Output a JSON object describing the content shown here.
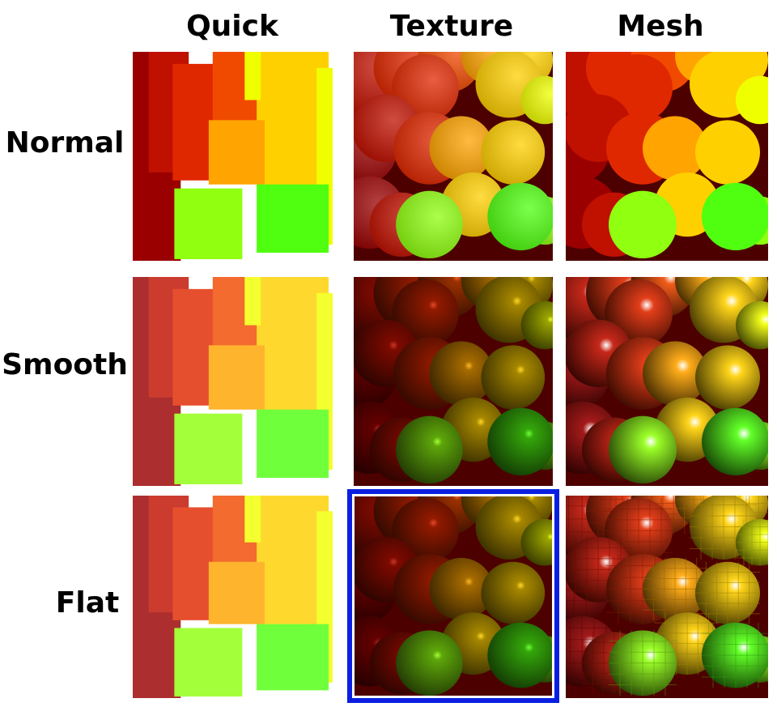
{
  "columns": [
    {
      "key": "quick",
      "label": "Quick"
    },
    {
      "key": "texture",
      "label": "Texture"
    },
    {
      "key": "mesh",
      "label": "Mesh"
    }
  ],
  "rows": [
    {
      "key": "normal",
      "label": "Normal"
    },
    {
      "key": "smooth",
      "label": "Smooth"
    },
    {
      "key": "flat",
      "label": "Flat"
    }
  ],
  "selected": {
    "row": "flat",
    "column": "texture"
  },
  "selection_color": "#0a1fe0",
  "palette": [
    "#9a0000",
    "#c01000",
    "#e02800",
    "#f04a00",
    "#ff7a00",
    "#ffa400",
    "#ffd000",
    "#f0ff00",
    "#90ff10",
    "#50ff10"
  ]
}
